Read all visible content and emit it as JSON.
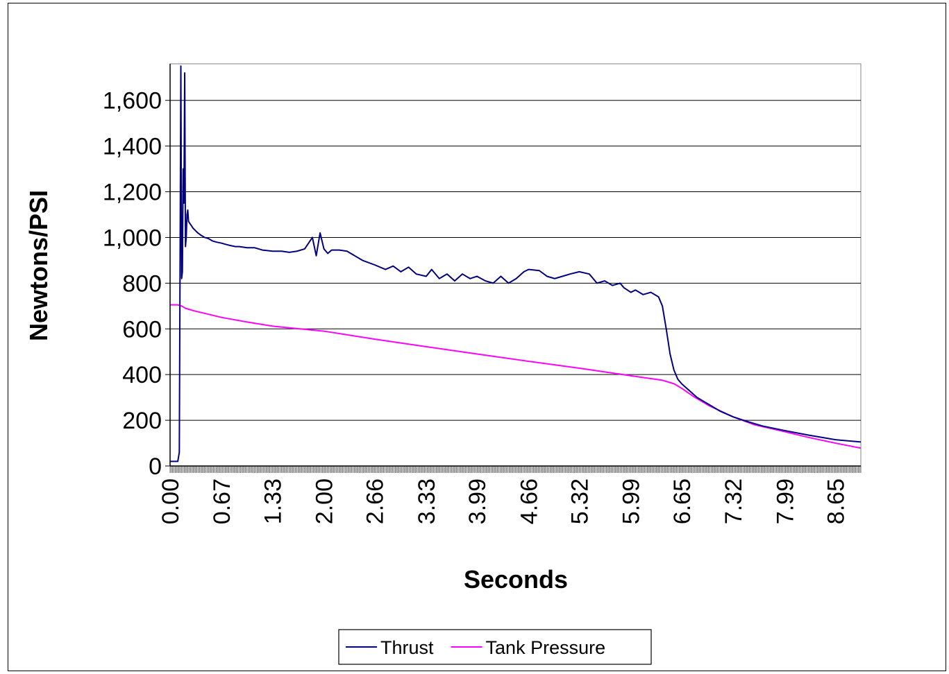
{
  "chart_data": {
    "type": "line",
    "title": "",
    "xlabel": "Seconds",
    "ylabel": "Newtons/PSI",
    "xlim": [
      0,
      8.98
    ],
    "ylim": [
      0,
      1760
    ],
    "y_ticks": [
      0,
      200,
      400,
      600,
      800,
      1000,
      1200,
      1400,
      1600
    ],
    "y_tick_labels": [
      "0",
      "200",
      "400",
      "600",
      "800",
      "1,000",
      "1,200",
      "1,400",
      "1,600"
    ],
    "x_tick_labels": [
      "0.00",
      "0.67",
      "1.33",
      "2.00",
      "2.66",
      "3.33",
      "3.99",
      "4.66",
      "5.32",
      "5.99",
      "6.65",
      "7.32",
      "7.99",
      "8.65"
    ],
    "grid": true,
    "legend_position": "bottom",
    "colors": {
      "thrust": "#000080",
      "tank_pressure": "#ff00ff"
    },
    "series": [
      {
        "name": "Thrust",
        "color": "#000080",
        "x": [
          0,
          0.1,
          0.12,
          0.14,
          0.15,
          0.16,
          0.17,
          0.18,
          0.19,
          0.2,
          0.21,
          0.22,
          0.23,
          0.24,
          0.26,
          0.28,
          0.3,
          0.33,
          0.36,
          0.4,
          0.45,
          0.5,
          0.55,
          0.6,
          0.67,
          0.72,
          0.78,
          0.85,
          0.9,
          1.0,
          1.1,
          1.2,
          1.33,
          1.45,
          1.55,
          1.65,
          1.75,
          1.85,
          1.9,
          1.95,
          2.0,
          2.05,
          2.1,
          2.2,
          2.3,
          2.4,
          2.5,
          2.66,
          2.8,
          2.9,
          3.0,
          3.1,
          3.2,
          3.33,
          3.4,
          3.5,
          3.6,
          3.7,
          3.8,
          3.9,
          3.99,
          4.1,
          4.2,
          4.3,
          4.4,
          4.5,
          4.6,
          4.66,
          4.8,
          4.9,
          5.0,
          5.1,
          5.2,
          5.32,
          5.45,
          5.55,
          5.65,
          5.75,
          5.85,
          5.9,
          5.99,
          6.05,
          6.15,
          6.25,
          6.35,
          6.4,
          6.45,
          6.5,
          6.55,
          6.6,
          6.65,
          6.75,
          6.85,
          7.0,
          7.15,
          7.32,
          7.5,
          7.7,
          7.99,
          8.3,
          8.65,
          8.98
        ],
        "values": [
          20,
          20,
          60,
          1750,
          820,
          850,
          1300,
          1150,
          1720,
          960,
          1000,
          1100,
          1120,
          1070,
          1060,
          1050,
          1040,
          1030,
          1020,
          1010,
          1000,
          995,
          985,
          980,
          975,
          970,
          965,
          960,
          960,
          955,
          955,
          945,
          940,
          940,
          935,
          940,
          950,
          1000,
          920,
          1020,
          950,
          930,
          945,
          945,
          940,
          920,
          900,
          880,
          860,
          875,
          850,
          870,
          840,
          830,
          860,
          820,
          840,
          810,
          840,
          820,
          830,
          810,
          800,
          830,
          800,
          820,
          850,
          860,
          855,
          830,
          820,
          830,
          840,
          850,
          840,
          800,
          810,
          790,
          800,
          780,
          760,
          770,
          750,
          760,
          740,
          700,
          600,
          490,
          420,
          380,
          360,
          330,
          300,
          270,
          240,
          215,
          195,
          175,
          155,
          135,
          115,
          105
        ]
      },
      {
        "name": "Tank Pressure",
        "color": "#ff00ff",
        "x": [
          0,
          0.1,
          0.15,
          0.2,
          0.25,
          0.3,
          0.67,
          1.0,
          1.33,
          2.0,
          2.66,
          3.33,
          3.99,
          4.66,
          5.32,
          5.99,
          6.4,
          6.55,
          6.65,
          6.8,
          7.0,
          7.32,
          7.6,
          7.99,
          8.3,
          8.65,
          8.98
        ],
        "values": [
          705,
          705,
          700,
          690,
          685,
          680,
          650,
          630,
          612,
          590,
          555,
          522,
          490,
          458,
          428,
          395,
          375,
          360,
          340,
          305,
          265,
          215,
          180,
          150,
          125,
          100,
          78
        ]
      }
    ]
  }
}
